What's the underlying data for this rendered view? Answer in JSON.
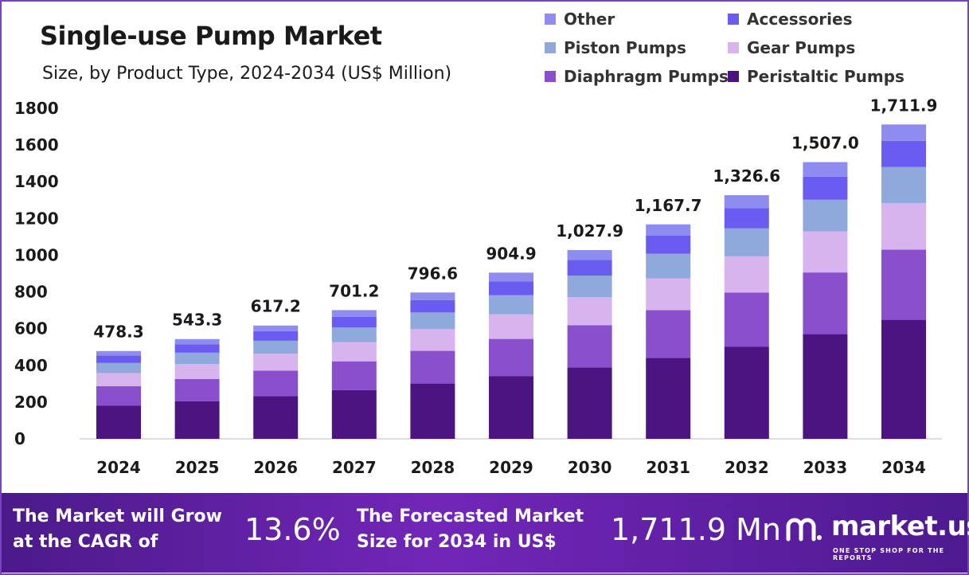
{
  "header": {
    "title": "Single-use Pump Market",
    "subtitle": "Size, by Product Type, 2024-2034 (US$ Million)"
  },
  "colors": {
    "Peristaltic Pumps": "#4b1480",
    "Diaphragm Pumps": "#8a4fcc",
    "Gear Pumps": "#d8b4ee",
    "Piston Pumps": "#8fa9dc",
    "Accessories": "#6a5cf0",
    "Other": "#8f8cf0",
    "banner_start": "#4b1a8a",
    "banner_end": "#7226b8"
  },
  "chart_data": {
    "type": "bar",
    "stacked": true,
    "categories": [
      "2024",
      "2025",
      "2026",
      "2027",
      "2028",
      "2029",
      "2030",
      "2031",
      "2032",
      "2033",
      "2034"
    ],
    "series": [
      {
        "name": "Peristaltic Pumps",
        "values": [
          180,
          204,
          233,
          265,
          301,
          342,
          389,
          441,
          501,
          570,
          648
        ]
      },
      {
        "name": "Diaphragm Pumps",
        "values": [
          107,
          122,
          138,
          157,
          178,
          202,
          230,
          260,
          296,
          336,
          382
        ]
      },
      {
        "name": "Gear Pumps",
        "values": [
          71,
          81,
          92,
          104,
          118,
          134,
          152,
          173,
          197,
          224,
          254
        ]
      },
      {
        "name": "Piston Pumps",
        "values": [
          55,
          62,
          71,
          80,
          91,
          104,
          118,
          134,
          152,
          172,
          196
        ]
      },
      {
        "name": "Accessories",
        "values": [
          40,
          46,
          52,
          59,
          67,
          76,
          86,
          98,
          111,
          126,
          143
        ]
      },
      {
        "name": "Other",
        "values": [
          25,
          28,
          31,
          36,
          42,
          47,
          53,
          62,
          70,
          79,
          89
        ]
      }
    ],
    "totals": [
      478.3,
      543.3,
      617.2,
      701.2,
      796.6,
      904.9,
      1027.9,
      1167.7,
      1326.6,
      1507.0,
      1711.9
    ],
    "total_labels": [
      "478.3",
      "543.3",
      "617.2",
      "701.2",
      "796.6",
      "904.9",
      "1,027.9",
      "1,167.7",
      "1,326.6",
      "1,507.0",
      "1,711.9"
    ],
    "yticks": [
      "0",
      "200",
      "400",
      "600",
      "800",
      "1000",
      "1200",
      "1400",
      "1600",
      "1800"
    ],
    "ylim": [
      0,
      1800
    ],
    "grid": false,
    "legend_position": "top-right",
    "legend_order": [
      "Other",
      "Accessories",
      "Piston Pumps",
      "Gear Pumps",
      "Diaphragm Pumps",
      "Peristaltic Pumps"
    ]
  },
  "banner": {
    "cagr_text_line1": "The Market will Grow",
    "cagr_text_line2": "at the CAGR of",
    "cagr_value": "13.6%",
    "forecast_text_line1": "The Forecasted Market",
    "forecast_text_line2": "Size for 2034 in US$",
    "forecast_value": "1,711.9 Mn",
    "logo_text": "market.us",
    "logo_tagline": "ONE STOP SHOP FOR THE REPORTS",
    "logo_icon": "market-us-logo-icon"
  }
}
